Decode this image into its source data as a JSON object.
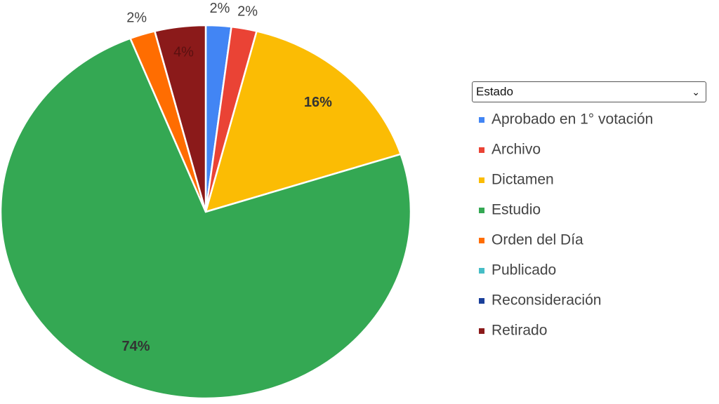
{
  "chart_data": {
    "type": "pie",
    "legend_title": "Estado",
    "categories": [
      "Aprobado en 1° votación",
      "Archivo",
      "Dictamen",
      "Estudio",
      "Orden del Día",
      "Publicado",
      "Reconsideración",
      "Retirado"
    ],
    "values": [
      2,
      2,
      16,
      74,
      2,
      0,
      0,
      4
    ],
    "value_labels": [
      "2%",
      "2%",
      "16%",
      "74%",
      "2%",
      null,
      null,
      "4%"
    ],
    "colors": [
      "#4285f4",
      "#ea4335",
      "#fbbc04",
      "#34a853",
      "#ff6d01",
      "#46bdc6",
      "#1a3f9a",
      "#8b1a1a"
    ],
    "legend": "right"
  }
}
